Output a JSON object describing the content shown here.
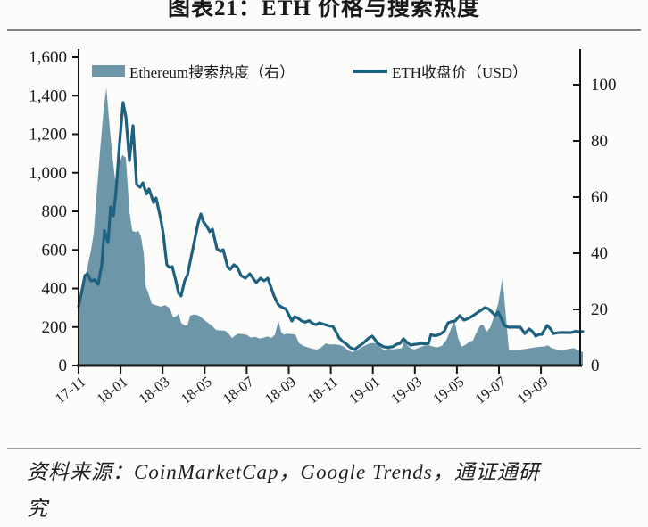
{
  "page": {
    "title": "图表21：ETH 价格与搜索热度",
    "source_note": "资料来源：CoinMarketCap，Google Trends，通证通研究"
  },
  "legend": {
    "area_label": "Ethereum搜索热度（右）",
    "line_label": "ETH收盘价（USD）"
  },
  "colors": {
    "area_fill": "#6d96a8",
    "line": "#1d6080",
    "axis": "#141414",
    "text": "#1a1a1a",
    "title_rule": "#838383",
    "source_rule": "#9a9a9a"
  },
  "chart_data": {
    "type": "area+line",
    "title": "图表21：ETH 价格与搜索热度",
    "grid": false,
    "legend_position": "top-inside",
    "x_unit": "months since 2017-11",
    "x_range_months": [
      0,
      24.1
    ],
    "x_tick_labels": [
      "17-11",
      "18-01",
      "18-03",
      "18-05",
      "18-07",
      "18-09",
      "18-11",
      "19-01",
      "19-03",
      "19-05",
      "19-07",
      "19-09"
    ],
    "x_tick_positions": [
      0,
      2,
      4,
      6,
      8,
      10,
      12,
      14,
      16,
      18,
      20,
      22
    ],
    "axes": {
      "left": {
        "series": "ETH收盘价（USD）",
        "min": 0,
        "max": 1600,
        "ticks": [
          0,
          200,
          400,
          600,
          800,
          1000,
          1200,
          1400,
          1600
        ],
        "tick_labels": [
          "0",
          "200",
          "400",
          "600",
          "800",
          "1,000",
          "1,200",
          "1,400",
          "1,600"
        ]
      },
      "right": {
        "series": "Ethereum搜索热度（右）",
        "min": 0,
        "max": 100,
        "ticks": [
          0,
          20,
          40,
          60,
          80,
          100
        ],
        "tick_labels": [
          "0",
          "20",
          "40",
          "60",
          "80",
          "100"
        ]
      }
    },
    "series": [
      {
        "name": "Ethereum搜索热度（右）",
        "type": "area",
        "axis": "right",
        "points": [
          [
            0,
            21.5
          ],
          [
            0.17,
            26
          ],
          [
            0.3,
            31
          ],
          [
            0.42,
            35
          ],
          [
            0.59,
            41
          ],
          [
            0.72,
            47
          ],
          [
            0.85,
            60
          ],
          [
            1.02,
            76
          ],
          [
            1.19,
            91
          ],
          [
            1.32,
            99
          ],
          [
            1.49,
            84
          ],
          [
            1.62,
            74
          ],
          [
            1.74,
            66
          ],
          [
            1.91,
            71
          ],
          [
            2.08,
            75
          ],
          [
            2.25,
            74
          ],
          [
            2.42,
            55
          ],
          [
            2.55,
            48
          ],
          [
            2.72,
            47.5
          ],
          [
            2.85,
            48
          ],
          [
            2.97,
            46
          ],
          [
            3.1,
            40
          ],
          [
            3.2,
            28
          ],
          [
            3.31,
            26
          ],
          [
            3.48,
            22
          ],
          [
            3.69,
            21.5
          ],
          [
            3.91,
            21
          ],
          [
            4.12,
            21.5
          ],
          [
            4.33,
            20.5
          ],
          [
            4.5,
            17.2
          ],
          [
            4.63,
            17.5
          ],
          [
            4.76,
            18.4
          ],
          [
            4.88,
            15.2
          ],
          [
            5.05,
            14.3
          ],
          [
            5.18,
            14.3
          ],
          [
            5.31,
            17.8
          ],
          [
            5.48,
            18.2
          ],
          [
            5.65,
            18
          ],
          [
            5.77,
            17.6
          ],
          [
            5.94,
            16.5
          ],
          [
            6.11,
            15.5
          ],
          [
            6.33,
            14.3
          ],
          [
            6.54,
            12.7
          ],
          [
            6.75,
            12.5
          ],
          [
            6.96,
            12.4
          ],
          [
            7.13,
            11.5
          ],
          [
            7.3,
            9.8
          ],
          [
            7.47,
            10.8
          ],
          [
            7.6,
            11.4
          ],
          [
            7.81,
            11.2
          ],
          [
            7.98,
            11
          ],
          [
            8.19,
            10
          ],
          [
            8.41,
            10.2
          ],
          [
            8.62,
            9.6
          ],
          [
            8.83,
            10
          ],
          [
            9,
            10.4
          ],
          [
            9.17,
            9.8
          ],
          [
            9.34,
            11
          ],
          [
            9.51,
            16
          ],
          [
            9.64,
            12
          ],
          [
            9.77,
            11
          ],
          [
            9.94,
            11.4
          ],
          [
            10.15,
            11.2
          ],
          [
            10.32,
            11
          ],
          [
            10.49,
            8
          ],
          [
            10.7,
            7
          ],
          [
            10.91,
            6.5
          ],
          [
            11.12,
            6
          ],
          [
            11.34,
            5.7
          ],
          [
            11.55,
            6.5
          ],
          [
            11.76,
            7.9
          ],
          [
            11.97,
            7.5
          ],
          [
            12.19,
            7.6
          ],
          [
            12.4,
            7.4
          ],
          [
            12.61,
            6.8
          ],
          [
            12.82,
            5.5
          ],
          [
            13.03,
            4.8
          ],
          [
            13.25,
            5.5
          ],
          [
            13.46,
            6.5
          ],
          [
            13.67,
            7.3
          ],
          [
            13.88,
            8
          ],
          [
            14.1,
            8
          ],
          [
            14.31,
            7
          ],
          [
            14.52,
            5.5
          ],
          [
            14.73,
            6
          ],
          [
            14.95,
            5.8
          ],
          [
            15.16,
            6
          ],
          [
            15.37,
            6.2
          ],
          [
            15.5,
            8.9
          ],
          [
            15.67,
            7
          ],
          [
            15.84,
            6
          ],
          [
            16.01,
            5.8
          ],
          [
            16.22,
            6.5
          ],
          [
            16.43,
            7
          ],
          [
            16.65,
            7.3
          ],
          [
            16.86,
            6.8
          ],
          [
            17.07,
            6.5
          ],
          [
            17.28,
            7
          ],
          [
            17.49,
            9
          ],
          [
            17.66,
            12
          ],
          [
            17.88,
            16.2
          ],
          [
            18.05,
            10
          ],
          [
            18.22,
            6.7
          ],
          [
            18.43,
            7.5
          ],
          [
            18.6,
            8.5
          ],
          [
            18.77,
            9
          ],
          [
            18.94,
            12
          ],
          [
            19.11,
            14.3
          ],
          [
            19.24,
            14.6
          ],
          [
            19.41,
            12
          ],
          [
            19.58,
            13.5
          ],
          [
            19.75,
            17
          ],
          [
            19.96,
            22
          ],
          [
            20.17,
            31.2
          ],
          [
            20.3,
            20
          ],
          [
            20.47,
            5.7
          ],
          [
            20.68,
            5.5
          ],
          [
            20.89,
            5.6
          ],
          [
            21.1,
            5.8
          ],
          [
            21.32,
            6
          ],
          [
            21.53,
            6.3
          ],
          [
            21.74,
            6.5
          ],
          [
            21.95,
            6.7
          ],
          [
            22.16,
            6.8
          ],
          [
            22.33,
            7.2
          ],
          [
            22.5,
            6.3
          ],
          [
            22.72,
            5.8
          ],
          [
            22.93,
            5.5
          ],
          [
            23.14,
            5.7
          ],
          [
            23.35,
            6
          ],
          [
            23.56,
            6.2
          ],
          [
            23.78,
            5.5
          ],
          [
            23.99,
            4.8
          ]
        ]
      },
      {
        "name": "ETH收盘价（USD）",
        "type": "line",
        "axis": "left",
        "points": [
          [
            0,
            305
          ],
          [
            0.17,
            393
          ],
          [
            0.3,
            467
          ],
          [
            0.42,
            476
          ],
          [
            0.59,
            439
          ],
          [
            0.76,
            445
          ],
          [
            0.93,
            421
          ],
          [
            1.1,
            520
          ],
          [
            1.23,
            700
          ],
          [
            1.4,
            638
          ],
          [
            1.53,
            823
          ],
          [
            1.66,
            777
          ],
          [
            1.78,
            900
          ],
          [
            1.95,
            1150
          ],
          [
            2.12,
            1364
          ],
          [
            2.25,
            1290
          ],
          [
            2.42,
            1063
          ],
          [
            2.59,
            1244
          ],
          [
            2.76,
            939
          ],
          [
            2.93,
            925
          ],
          [
            3.06,
            948
          ],
          [
            3.23,
            890
          ],
          [
            3.35,
            916
          ],
          [
            3.57,
            846
          ],
          [
            3.69,
            869
          ],
          [
            3.91,
            760
          ],
          [
            4.03,
            684
          ],
          [
            4.2,
            523
          ],
          [
            4.33,
            509
          ],
          [
            4.46,
            513
          ],
          [
            4.63,
            440
          ],
          [
            4.76,
            375
          ],
          [
            4.88,
            361
          ],
          [
            5.05,
            440
          ],
          [
            5.18,
            470
          ],
          [
            5.35,
            560
          ],
          [
            5.52,
            650
          ],
          [
            5.69,
            740
          ],
          [
            5.82,
            786
          ],
          [
            5.94,
            745
          ],
          [
            6.11,
            721
          ],
          [
            6.24,
            694
          ],
          [
            6.37,
            708
          ],
          [
            6.58,
            606
          ],
          [
            6.75,
            592
          ],
          [
            6.88,
            601
          ],
          [
            7.09,
            513
          ],
          [
            7.22,
            499
          ],
          [
            7.39,
            523
          ],
          [
            7.56,
            510
          ],
          [
            7.73,
            467
          ],
          [
            7.94,
            453
          ],
          [
            8.15,
            476
          ],
          [
            8.32,
            450
          ],
          [
            8.45,
            430
          ],
          [
            8.66,
            453
          ],
          [
            8.83,
            440
          ],
          [
            9,
            453
          ],
          [
            9.17,
            400
          ],
          [
            9.3,
            361
          ],
          [
            9.51,
            314
          ],
          [
            9.72,
            300
          ],
          [
            9.85,
            295
          ],
          [
            9.98,
            268
          ],
          [
            10.15,
            231
          ],
          [
            10.28,
            254
          ],
          [
            10.45,
            245
          ],
          [
            10.62,
            231
          ],
          [
            10.79,
            225
          ],
          [
            10.96,
            233
          ],
          [
            11.12,
            220
          ],
          [
            11.29,
            212
          ],
          [
            11.46,
            222
          ],
          [
            11.63,
            215
          ],
          [
            11.8,
            210
          ],
          [
            11.97,
            205
          ],
          [
            12.1,
            203
          ],
          [
            12.27,
            170
          ],
          [
            12.4,
            143
          ],
          [
            12.57,
            125
          ],
          [
            12.7,
            116
          ],
          [
            12.91,
            95
          ],
          [
            13.12,
            83
          ],
          [
            13.33,
            100
          ],
          [
            13.54,
            116
          ],
          [
            13.8,
            143
          ],
          [
            13.97,
            153
          ],
          [
            14.1,
            135
          ],
          [
            14.22,
            116
          ],
          [
            14.39,
            105
          ],
          [
            14.52,
            97
          ],
          [
            14.73,
            95
          ],
          [
            14.95,
            98
          ],
          [
            15.12,
            110
          ],
          [
            15.29,
            115
          ],
          [
            15.46,
            139
          ],
          [
            15.63,
            120
          ],
          [
            15.8,
            106
          ],
          [
            15.97,
            110
          ],
          [
            16.14,
            112
          ],
          [
            16.31,
            115
          ],
          [
            16.48,
            113
          ],
          [
            16.65,
            115
          ],
          [
            16.77,
            162
          ],
          [
            16.94,
            155
          ],
          [
            17.07,
            157
          ],
          [
            17.24,
            165
          ],
          [
            17.41,
            180
          ],
          [
            17.58,
            222
          ],
          [
            17.75,
            228
          ],
          [
            17.92,
            231
          ],
          [
            18.13,
            259
          ],
          [
            18.34,
            236
          ],
          [
            18.56,
            245
          ],
          [
            18.77,
            259
          ],
          [
            18.98,
            275
          ],
          [
            19.19,
            290
          ],
          [
            19.32,
            300
          ],
          [
            19.49,
            295
          ],
          [
            19.62,
            282
          ],
          [
            19.83,
            259
          ],
          [
            19.96,
            277
          ],
          [
            20.13,
            240
          ],
          [
            20.25,
            208
          ],
          [
            20.47,
            199
          ],
          [
            20.68,
            200
          ],
          [
            20.89,
            199
          ],
          [
            21.02,
            199
          ],
          [
            21.23,
            166
          ],
          [
            21.44,
            190
          ],
          [
            21.61,
            175
          ],
          [
            21.74,
            153
          ],
          [
            21.91,
            162
          ],
          [
            22.04,
            162
          ],
          [
            22.29,
            208
          ],
          [
            22.46,
            190
          ],
          [
            22.59,
            166
          ],
          [
            22.8,
            170
          ],
          [
            23.01,
            172
          ],
          [
            23.23,
            171
          ],
          [
            23.44,
            171
          ],
          [
            23.65,
            178
          ],
          [
            23.86,
            174
          ],
          [
            23.99,
            177
          ]
        ]
      }
    ]
  }
}
